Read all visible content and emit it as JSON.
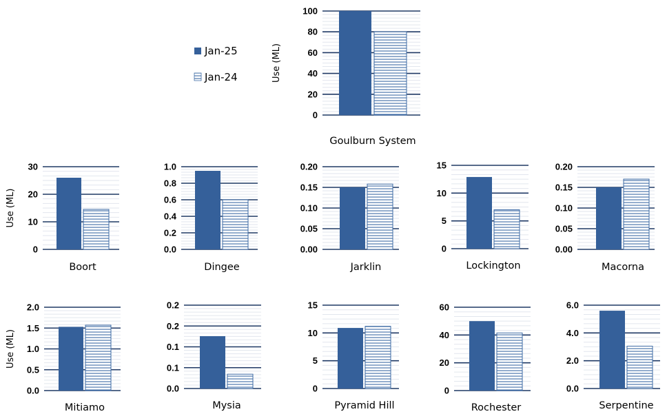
{
  "colors": {
    "primary_bar": "#35609A",
    "secondary_hatch": "#3E6BA5",
    "gridline": "#1F3864",
    "minor_gridline": "#E2E6EE"
  },
  "legend": {
    "items": [
      {
        "label": "Jan-25",
        "style": "solid"
      },
      {
        "label": "Jan-24",
        "style": "hatched"
      }
    ]
  },
  "chart_data": [
    {
      "type": "bar",
      "title": "",
      "xlabel": "Goulburn System",
      "ylabel": "Use (ML)",
      "ylim": [
        0,
        100
      ],
      "yticks": [
        "0",
        "20",
        "40",
        "60",
        "80",
        "100"
      ],
      "series": [
        {
          "name": "Jan-25",
          "values": [
            100
          ]
        },
        {
          "name": "Jan-24",
          "values": [
            80
          ]
        }
      ]
    },
    {
      "type": "bar",
      "title": "",
      "xlabel": "Boort",
      "ylabel": "Use (ML)",
      "ylim": [
        0,
        30
      ],
      "yticks": [
        "0",
        "10",
        "20",
        "30"
      ],
      "series": [
        {
          "name": "Jan-25",
          "values": [
            26
          ]
        },
        {
          "name": "Jan-24",
          "values": [
            14.5
          ]
        }
      ]
    },
    {
      "type": "bar",
      "title": "",
      "xlabel": "Dingee",
      "ylabel": "",
      "ylim": [
        0,
        1.0
      ],
      "yticks": [
        "0.0",
        "0.2",
        "0.4",
        "0.6",
        "0.8",
        "1.0"
      ],
      "series": [
        {
          "name": "Jan-25",
          "values": [
            0.95
          ]
        },
        {
          "name": "Jan-24",
          "values": [
            0.6
          ]
        }
      ]
    },
    {
      "type": "bar",
      "title": "",
      "xlabel": "Jarklin",
      "ylabel": "",
      "ylim": [
        0,
        0.2
      ],
      "yticks": [
        "0.00",
        "0.05",
        "0.10",
        "0.15",
        "0.20"
      ],
      "series": [
        {
          "name": "Jan-25",
          "values": [
            0.15
          ]
        },
        {
          "name": "Jan-24",
          "values": [
            0.158
          ]
        }
      ]
    },
    {
      "type": "bar",
      "title": "",
      "xlabel": "Lockington",
      "ylabel": "",
      "ylim": [
        0,
        15
      ],
      "yticks": [
        "0",
        "5",
        "10",
        "15"
      ],
      "series": [
        {
          "name": "Jan-25",
          "values": [
            12.9
          ]
        },
        {
          "name": "Jan-24",
          "values": [
            7
          ]
        }
      ]
    },
    {
      "type": "bar",
      "title": "",
      "xlabel": "Macorna",
      "ylabel": "",
      "ylim": [
        0,
        0.2
      ],
      "yticks": [
        "0.00",
        "0.05",
        "0.10",
        "0.15",
        "0.20"
      ],
      "series": [
        {
          "name": "Jan-25",
          "values": [
            0.15
          ]
        },
        {
          "name": "Jan-24",
          "values": [
            0.17
          ]
        }
      ]
    },
    {
      "type": "bar",
      "title": "",
      "xlabel": "Mitiamo",
      "ylabel": "Use (ML)",
      "ylim": [
        0,
        2.0
      ],
      "yticks": [
        "0.0",
        "0.5",
        "1.0",
        "1.5",
        "2.0"
      ],
      "series": [
        {
          "name": "Jan-25",
          "values": [
            1.53
          ]
        },
        {
          "name": "Jan-24",
          "values": [
            1.57
          ]
        }
      ]
    },
    {
      "type": "bar",
      "title": "",
      "xlabel": "Mysia",
      "ylabel": "",
      "ylim": [
        0,
        0.25
      ],
      "yticks": [
        "0.0",
        "0.1",
        "0.1",
        "0.2",
        "0.2"
      ],
      "series": [
        {
          "name": "Jan-25",
          "values": [
            0.157
          ]
        },
        {
          "name": "Jan-24",
          "values": [
            0.043
          ]
        }
      ]
    },
    {
      "type": "bar",
      "title": "",
      "xlabel": "Pyramid Hill",
      "ylabel": "",
      "ylim": [
        0,
        15
      ],
      "yticks": [
        "0",
        "5",
        "10",
        "15"
      ],
      "series": [
        {
          "name": "Jan-25",
          "values": [
            10.9
          ]
        },
        {
          "name": "Jan-24",
          "values": [
            11.2
          ]
        }
      ]
    },
    {
      "type": "bar",
      "title": "",
      "xlabel": "Rochester",
      "ylabel": "",
      "ylim": [
        0,
        60
      ],
      "yticks": [
        "0",
        "20",
        "40",
        "60"
      ],
      "series": [
        {
          "name": "Jan-25",
          "values": [
            50
          ]
        },
        {
          "name": "Jan-24",
          "values": [
            41.5
          ]
        }
      ]
    },
    {
      "type": "bar",
      "title": "",
      "xlabel": "Serpentine",
      "ylabel": "",
      "ylim": [
        0,
        6.0
      ],
      "yticks": [
        "0.0",
        "2.0",
        "4.0",
        "6.0"
      ],
      "series": [
        {
          "name": "Jan-25",
          "values": [
            5.6
          ]
        },
        {
          "name": "Jan-24",
          "values": [
            3.05
          ]
        }
      ]
    }
  ]
}
